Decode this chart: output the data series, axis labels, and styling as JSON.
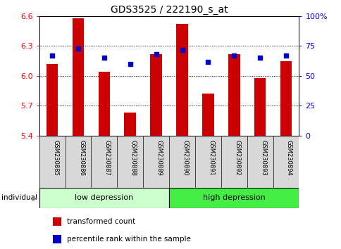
{
  "title": "GDS3525 / 222190_s_at",
  "samples": [
    "GSM230885",
    "GSM230886",
    "GSM230887",
    "GSM230888",
    "GSM230889",
    "GSM230890",
    "GSM230891",
    "GSM230892",
    "GSM230893",
    "GSM230894"
  ],
  "transformed_count": [
    6.12,
    6.58,
    6.04,
    5.63,
    6.22,
    6.52,
    5.82,
    6.22,
    5.98,
    6.15
  ],
  "percentile_rank": [
    67,
    73,
    65,
    60,
    68,
    72,
    62,
    67,
    65,
    67
  ],
  "ylim_left": [
    5.4,
    6.6
  ],
  "ylim_right": [
    0,
    100
  ],
  "yticks_left": [
    5.4,
    5.7,
    6.0,
    6.3,
    6.6
  ],
  "yticks_right": [
    0,
    25,
    50,
    75,
    100
  ],
  "ytick_labels_right": [
    "0",
    "25",
    "50",
    "75",
    "100%"
  ],
  "bar_color": "#cc0000",
  "dot_color": "#0000cc",
  "group_labels": [
    "low depression",
    "high depression"
  ],
  "group_ranges": [
    [
      0,
      4
    ],
    [
      5,
      9
    ]
  ],
  "group_colors": [
    "#ccffcc",
    "#44ee44"
  ],
  "bar_width": 0.45,
  "bar_bottom": 5.4,
  "legend_items": [
    "transformed count",
    "percentile rank within the sample"
  ],
  "legend_colors": [
    "#cc0000",
    "#0000cc"
  ],
  "individual_label": "individual",
  "individual_arrow": "▶"
}
